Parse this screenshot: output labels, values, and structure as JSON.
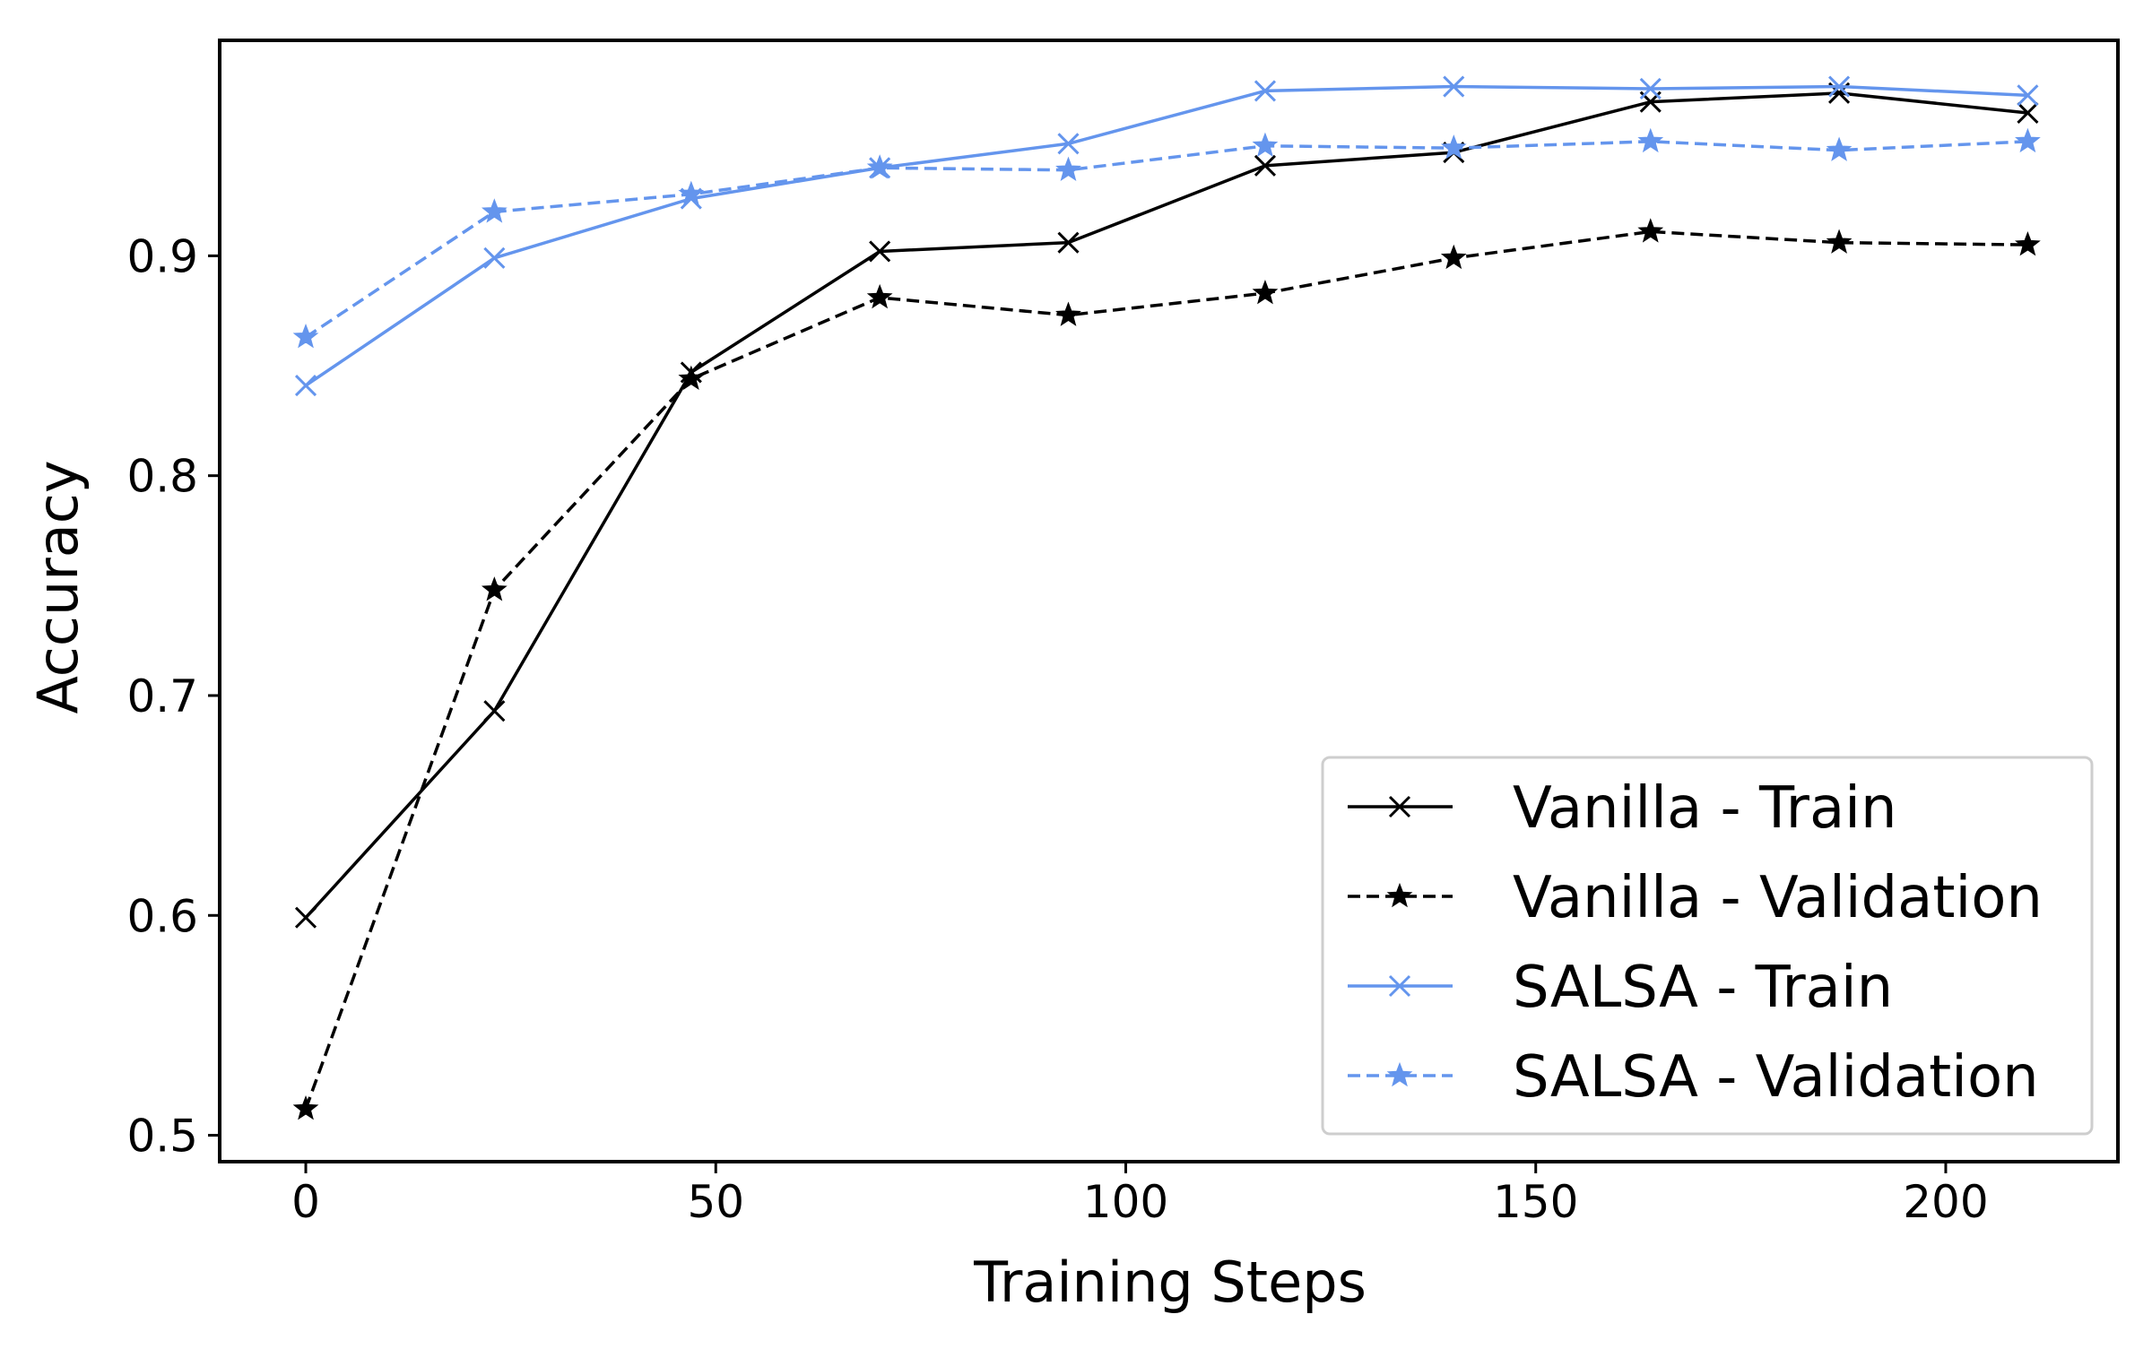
{
  "chart_data": {
    "type": "line",
    "title": "",
    "xlabel": "Training Steps",
    "ylabel": "Accuracy",
    "xlim": [
      -10.5,
      221
    ],
    "ylim": [
      0.488,
      0.998
    ],
    "xticks": [
      0,
      50,
      100,
      150,
      200
    ],
    "xtick_labels": [
      "0",
      "50",
      "100",
      "150",
      "200"
    ],
    "yticks": [
      0.5,
      0.6,
      0.7,
      0.8,
      0.9
    ],
    "ytick_labels": [
      "0.5",
      "0.6",
      "0.7",
      "0.8",
      "0.9"
    ],
    "grid": false,
    "legend_position": "lower-right",
    "x": [
      0,
      23,
      47,
      70,
      93,
      117,
      140,
      164,
      187,
      210
    ],
    "series": [
      {
        "name": "Vanilla - Train",
        "color": "#000000",
        "line_style": "solid",
        "marker": "x",
        "values": [
          0.599,
          0.693,
          0.847,
          0.902,
          0.906,
          0.941,
          0.947,
          0.97,
          0.974,
          0.965
        ]
      },
      {
        "name": "Vanilla - Validation",
        "color": "#000000",
        "line_style": "dashed",
        "marker": "star",
        "values": [
          0.512,
          0.748,
          0.844,
          0.881,
          0.873,
          0.883,
          0.899,
          0.911,
          0.906,
          0.905
        ]
      },
      {
        "name": "SALSA - Train",
        "color": "#6495ED",
        "line_style": "solid",
        "marker": "x",
        "values": [
          0.841,
          0.899,
          0.926,
          0.94,
          0.951,
          0.975,
          0.977,
          0.976,
          0.977,
          0.973
        ]
      },
      {
        "name": "SALSA - Validation",
        "color": "#6495ED",
        "line_style": "dashed",
        "marker": "star",
        "values": [
          0.863,
          0.92,
          0.928,
          0.94,
          0.939,
          0.95,
          0.949,
          0.952,
          0.948,
          0.952
        ]
      }
    ]
  }
}
